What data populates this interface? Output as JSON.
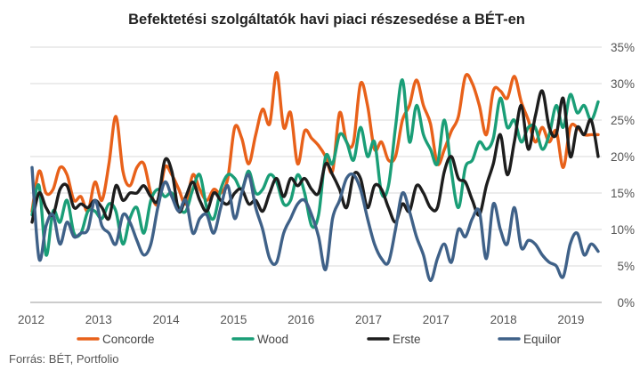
{
  "chart_data": {
    "type": "line",
    "title": "Befektetési szolgáltatók havi piaci részesedése a BÉT-en",
    "xlabel": "",
    "ylabel": "",
    "x_tick_labels": [
      "2012",
      "2013",
      "2014",
      "2015",
      "2016",
      "2017",
      "2017",
      "2018",
      "2019"
    ],
    "y_tick_labels": [
      "0%",
      "5%",
      "10%",
      "15%",
      "20%",
      "25%",
      "30%",
      "35%"
    ],
    "ylim": [
      0,
      35
    ],
    "grid": true,
    "legend": "bottom",
    "source": "Forrás: BÉT, Portfolio",
    "series": [
      {
        "name": "Concorde",
        "color": "#e8611a",
        "values": [
          12.5,
          18.0,
          15.0,
          15.5,
          18.5,
          17.5,
          14.0,
          14.5,
          12.5,
          16.5,
          14.0,
          19.0,
          25.5,
          18.0,
          16.0,
          18.5,
          19.0,
          15.0,
          13.5,
          18.5,
          17.5,
          15.5,
          13.5,
          17.5,
          15.5,
          14.0,
          15.5,
          15.0,
          17.0,
          24.0,
          22.5,
          19.0,
          23.0,
          26.5,
          24.5,
          31.5,
          24.0,
          26.0,
          19.0,
          23.5,
          22.5,
          21.5,
          20.0,
          18.0,
          26.0,
          22.0,
          22.0,
          30.0,
          27.0,
          21.0,
          22.0,
          19.5,
          20.0,
          25.0,
          27.0,
          30.5,
          27.0,
          24.5,
          19.0,
          21.0,
          23.5,
          25.5,
          31.0,
          30.0,
          27.0,
          23.0,
          29.0,
          29.0,
          28.0,
          31.0,
          27.5,
          25.0,
          22.0,
          24.0,
          22.0,
          23.5,
          18.5,
          24.0,
          24.0,
          23.0,
          23.0,
          23.0
        ]
      },
      {
        "name": "Wood",
        "color": "#1a9e77",
        "values": [
          12.0,
          16.0,
          6.5,
          12.5,
          11.0,
          14.0,
          9.5,
          9.5,
          12.5,
          12.5,
          11.5,
          13.5,
          12.5,
          8.0,
          11.5,
          13.0,
          9.5,
          14.0,
          15.5,
          14.5,
          15.0,
          13.0,
          12.5,
          15.5,
          17.5,
          13.0,
          11.5,
          15.5,
          17.5,
          17.0,
          15.5,
          18.0,
          15.0,
          15.5,
          17.5,
          16.5,
          13.5,
          14.0,
          17.5,
          15.0,
          10.5,
          12.0,
          20.0,
          19.0,
          23.0,
          22.0,
          19.5,
          24.0,
          20.0,
          22.0,
          15.0,
          16.0,
          24.0,
          30.5,
          22.0,
          27.0,
          23.0,
          21.0,
          19.0,
          25.0,
          18.0,
          13.0,
          18.5,
          19.5,
          22.0,
          21.0,
          22.5,
          28.0,
          24.0,
          25.0,
          22.0,
          24.0,
          24.0,
          21.0,
          23.0,
          27.0,
          24.0,
          28.5,
          26.0,
          27.0,
          25.0,
          27.5
        ]
      },
      {
        "name": "Erste",
        "color": "#1d1d1d",
        "values": [
          11.0,
          15.0,
          13.0,
          12.0,
          15.5,
          16.0,
          13.0,
          13.5,
          13.0,
          14.0,
          13.0,
          11.5,
          16.0,
          14.0,
          15.0,
          15.0,
          16.0,
          14.5,
          14.0,
          19.5,
          18.0,
          12.5,
          14.5,
          16.5,
          14.0,
          12.5,
          15.0,
          14.0,
          13.5,
          15.0,
          15.5,
          13.5,
          14.0,
          12.5,
          15.0,
          17.0,
          14.5,
          17.0,
          16.0,
          17.0,
          15.5,
          15.0,
          19.0,
          17.5,
          15.5,
          13.0,
          17.5,
          17.0,
          13.0,
          16.0,
          15.5,
          13.0,
          11.0,
          13.5,
          12.5,
          16.0,
          15.0,
          13.0,
          13.0,
          18.0,
          20.0,
          17.0,
          16.5,
          14.0,
          12.0,
          16.0,
          19.0,
          23.0,
          17.5,
          22.0,
          27.0,
          21.0,
          25.5,
          29.0,
          24.0,
          23.0,
          28.0,
          20.0,
          24.0,
          23.0,
          25.0,
          20.0
        ]
      },
      {
        "name": "Equilor",
        "color": "#3f6188",
        "values": [
          18.5,
          6.0,
          10.5,
          12.0,
          8.0,
          11.0,
          9.0,
          9.5,
          10.0,
          14.0,
          10.5,
          9.5,
          8.0,
          12.0,
          11.0,
          8.5,
          6.5,
          8.0,
          13.0,
          16.5,
          14.5,
          12.5,
          14.0,
          9.5,
          11.5,
          12.0,
          9.5,
          13.0,
          16.0,
          11.5,
          15.0,
          17.5,
          13.0,
          10.0,
          6.0,
          5.5,
          9.5,
          11.5,
          13.5,
          14.0,
          12.0,
          9.0,
          4.5,
          11.5,
          14.0,
          17.0,
          17.5,
          15.5,
          11.5,
          8.0,
          6.0,
          5.5,
          10.0,
          15.0,
          12.5,
          9.0,
          6.5,
          3.0,
          6.0,
          8.0,
          5.5,
          10.0,
          9.0,
          11.5,
          12.5,
          6.0,
          13.5,
          10.0,
          8.0,
          13.0,
          7.5,
          8.5,
          8.0,
          6.5,
          5.5,
          5.0,
          3.5,
          8.0,
          9.5,
          6.5,
          8.0,
          7.0
        ]
      }
    ]
  }
}
